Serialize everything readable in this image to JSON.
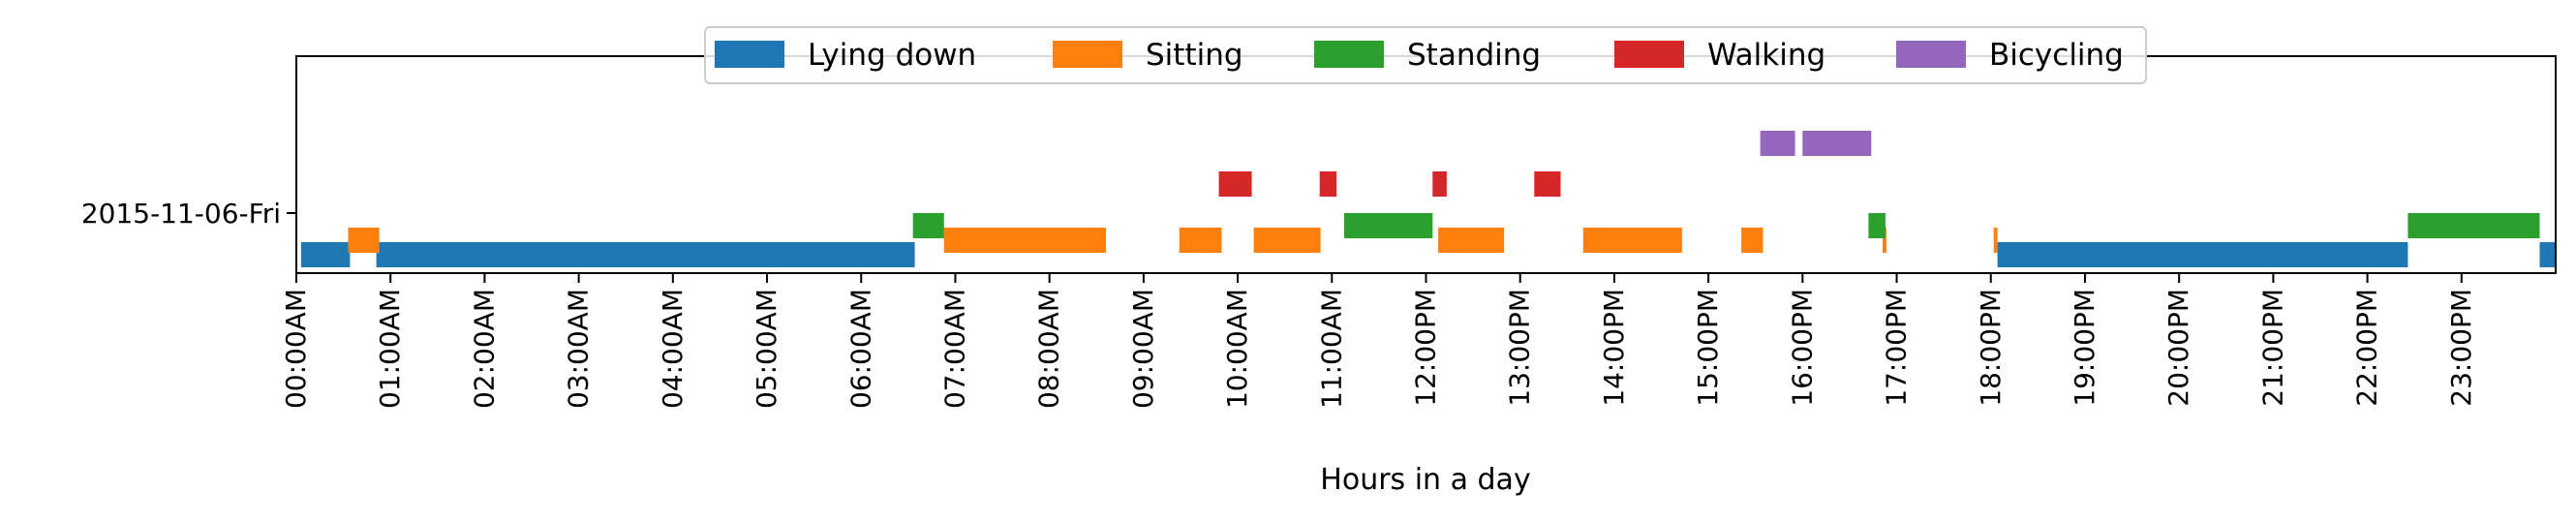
{
  "chart_data": {
    "type": "broken_barh",
    "title": "",
    "xlabel": "Hours in a day",
    "ylabel": "",
    "xlim": [
      0,
      24
    ],
    "x_unit": "hours",
    "y_categories": [
      "2015-11-06-Fri"
    ],
    "x_tick_labels": [
      "00:00AM",
      "01:00AM",
      "02:00AM",
      "03:00AM",
      "04:00AM",
      "05:00AM",
      "06:00AM",
      "07:00AM",
      "08:00AM",
      "09:00AM",
      "10:00AM",
      "11:00AM",
      "12:00PM",
      "13:00PM",
      "14:00PM",
      "15:00PM",
      "16:00PM",
      "17:00PM",
      "18:00PM",
      "19:00PM",
      "20:00PM",
      "21:00PM",
      "22:00PM",
      "23:00PM"
    ],
    "legend_position": "top-center",
    "grid": false,
    "series": [
      {
        "name": "Lying down",
        "color": "#1f77b4",
        "row": 0,
        "intervals": [
          [
            0.05,
            0.57
          ],
          [
            0.85,
            6.57
          ],
          [
            18.07,
            22.43
          ],
          [
            23.83,
            24.0
          ]
        ]
      },
      {
        "name": "Sitting",
        "color": "#ff7f0e",
        "row": 1,
        "intervals": [
          [
            0.55,
            0.88
          ],
          [
            6.88,
            8.6
          ],
          [
            9.38,
            9.83
          ],
          [
            10.17,
            10.88
          ],
          [
            12.13,
            12.83
          ],
          [
            13.67,
            14.72
          ],
          [
            15.35,
            15.58
          ],
          [
            16.85,
            16.89
          ],
          [
            18.03,
            18.07
          ]
        ]
      },
      {
        "name": "Standing",
        "color": "#2ca02c",
        "row": 2,
        "intervals": [
          [
            6.55,
            6.88
          ],
          [
            11.13,
            12.07
          ],
          [
            16.7,
            16.88
          ],
          [
            22.43,
            23.83
          ]
        ]
      },
      {
        "name": "Walking",
        "color": "#d62728",
        "row": 3,
        "intervals": [
          [
            9.8,
            10.15
          ],
          [
            10.87,
            11.05
          ],
          [
            12.07,
            12.22
          ],
          [
            13.15,
            13.43
          ]
        ]
      },
      {
        "name": "Bicycling",
        "color": "#9467bd",
        "row": 4,
        "intervals": [
          [
            15.55,
            15.92
          ],
          [
            16.0,
            16.73
          ]
        ]
      }
    ]
  }
}
